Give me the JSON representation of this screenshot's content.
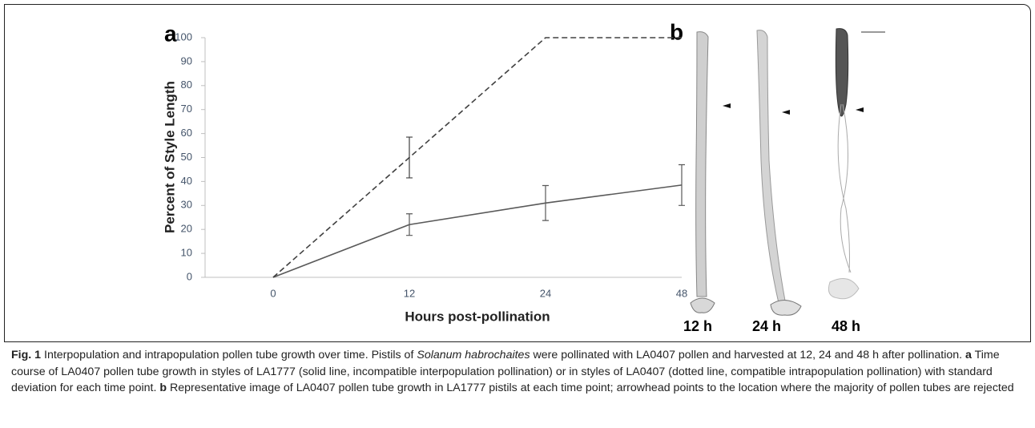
{
  "chart_data": {
    "type": "line",
    "panel_label": "a",
    "xlabel": "Hours post-pollination",
    "ylabel": "Percent of Style Length",
    "categories": [
      "0",
      "12",
      "24",
      "48"
    ],
    "series": [
      {
        "color": "#595959",
        "style": "solid",
        "values": [
          0,
          22,
          31,
          38.5
        ],
        "errors": [
          null,
          4.5,
          7.3,
          8.5
        ]
      },
      {
        "color": "#404040",
        "style": "dashed",
        "values": [
          0,
          50,
          100,
          100
        ],
        "errors": [
          null,
          8.5,
          null,
          null
        ]
      }
    ],
    "ylim": [
      0,
      100
    ],
    "yticks": [
      0,
      10,
      20,
      30,
      40,
      50,
      60,
      70,
      80,
      90,
      100
    ],
    "grid": false
  },
  "panel_b": {
    "label": "b",
    "times": [
      "12 h",
      "24 h",
      "48 h"
    ]
  },
  "caption": {
    "fig": "Fig. 1",
    "p1": "Interpopulation and intrapopulation pollen tube growth over time. Pistils of",
    "species": "Solanum habrochaites",
    "p2": "were pollinated with LA0407 pollen and harvested at 12, 24 and 48 h after pollination.",
    "a": "a",
    "p3": "Time course of LA0407 pollen tube growth in styles of LA1777 (solid line, incompatible interpopulation pollination) or in styles of LA0407 (dotted line, compatible intrapopulation pollination) with standard deviation for each time point.",
    "b": "b",
    "p4": "Representative image of LA0407 pollen tube growth in LA1777 pistils at each time point; arrowhead points to the location where the majority of pollen tubes are rejected"
  }
}
